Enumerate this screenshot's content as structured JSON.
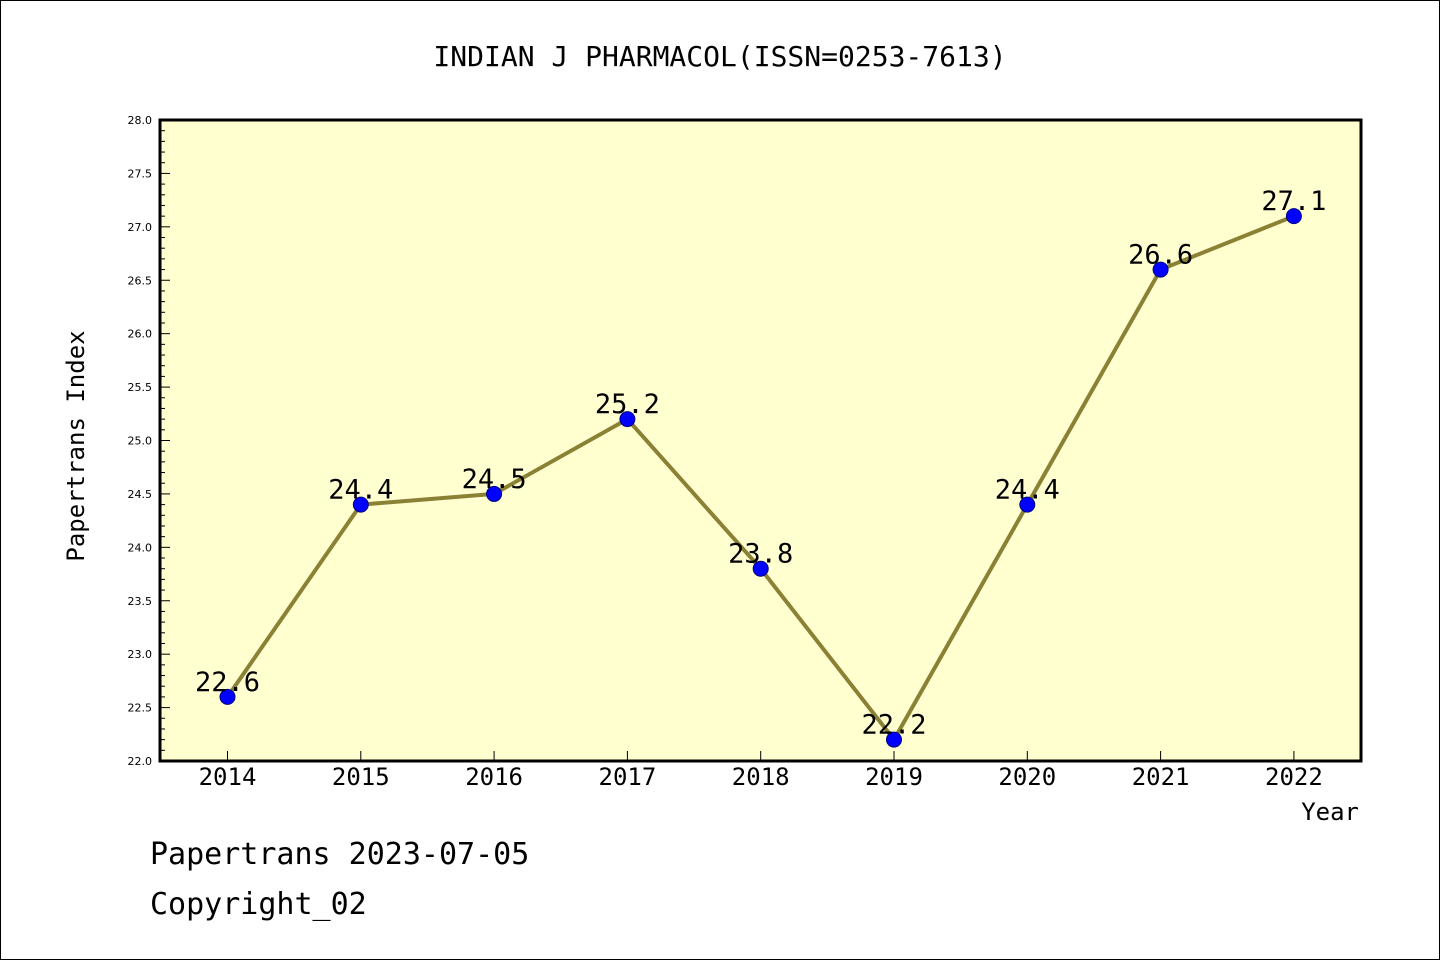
{
  "chart_data": {
    "type": "line",
    "title": "INDIAN J PHARMACOL(ISSN=0253-7613)",
    "xlabel": "Year",
    "ylabel": "Papertrans Index",
    "categories": [
      "2014",
      "2015",
      "2016",
      "2017",
      "2018",
      "2019",
      "2020",
      "2021",
      "2022"
    ],
    "series": [
      {
        "values": [
          22.6,
          24.4,
          24.5,
          25.2,
          23.8,
          22.2,
          24.4,
          26.6,
          27.1
        ]
      }
    ],
    "data_labels": [
      "22.6",
      "24.4",
      "24.5",
      "25.2",
      "23.8",
      "22.2",
      "24.4",
      "26.6",
      "27.1"
    ],
    "ylim": [
      22.0,
      28.0
    ],
    "yticks": [
      "22.0",
      "22.5",
      "23.0",
      "23.5",
      "24.0",
      "24.5",
      "25.0",
      "25.5",
      "26.0",
      "26.5",
      "27.0",
      "27.5",
      "28.0"
    ],
    "grid": false,
    "legend": "none",
    "colors": {
      "plot_background": "#ffffd0",
      "line": "#8b8135",
      "marker": "#0000ff",
      "marker_edge": "#000080"
    }
  },
  "footer": {
    "line1": "Papertrans 2023-07-05",
    "line2": "Copyright_02"
  }
}
